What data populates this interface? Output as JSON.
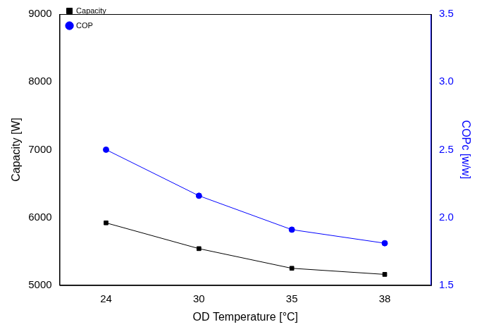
{
  "chart_data": {
    "type": "line",
    "x_label": "OD Temperature [°C]",
    "y_label": "Capacity [W]",
    "y2_label": "COPc [w/w]",
    "categories": [
      "24",
      "30",
      "35",
      "38"
    ],
    "series": [
      {
        "name": "Capacity",
        "color": "#000000",
        "marker": "square",
        "line_style": "solid",
        "values": [
          5920,
          5540,
          5250,
          5160
        ]
      },
      {
        "name": "COP",
        "color": "#0000ff",
        "marker": "circle",
        "line_style": "solid",
        "axis": "y2",
        "values": [
          2.5,
          2.16,
          1.91,
          1.81
        ]
      }
    ],
    "ylim": [
      5000,
      9000
    ],
    "yticks": [
      5000,
      6000,
      7000,
      8000,
      9000
    ],
    "y2lim": [
      1.5,
      3.5
    ],
    "y2ticks": [
      1.5,
      {
        "value": 2,
        "label": "2.0"
      },
      2.5,
      {
        "value": 3,
        "label": "3.0"
      },
      3.5
    ],
    "grid": false,
    "legend": "upper left"
  }
}
